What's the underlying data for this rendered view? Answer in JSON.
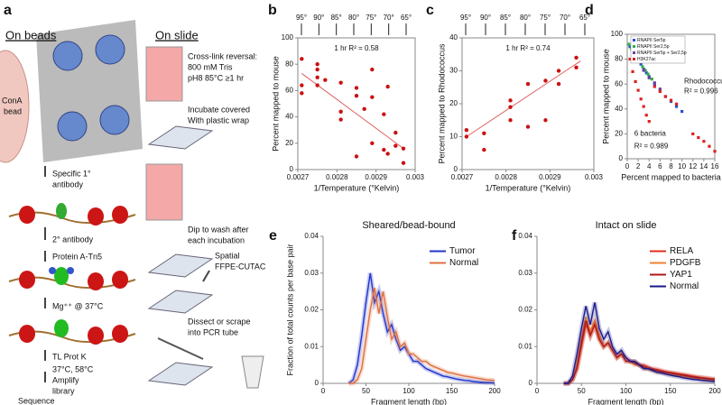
{
  "diagram": {
    "panel": "a",
    "on_beads": "On beads",
    "on_slide": "On slide",
    "bead": [
      "ConA",
      "bead"
    ],
    "bead_steps": [
      [
        "Specific 1°",
        "antibody"
      ],
      [
        "2° antibody"
      ],
      [
        "Protein A-Tn5"
      ],
      [
        "Mg⁺⁺ @ 37°C"
      ],
      [
        "TL Prot K"
      ],
      [
        "37°C, 58°C"
      ],
      [
        "Amplify",
        "library"
      ],
      [
        "Sequence"
      ]
    ],
    "slide_steps": [
      [
        "Cross-link reversal:",
        "800 mM Tris",
        "pH8 85°C ≥1 hr"
      ],
      [
        "Incubate covered",
        "With plastic wrap"
      ],
      [
        "Dip to wash after",
        "each incubation"
      ],
      [
        "Spatial",
        "FFPE-CUTAC"
      ],
      [
        "Dissect or scrape",
        "into PCR tube"
      ]
    ]
  },
  "chart_data": [
    {
      "type": "scatter",
      "panel": "b",
      "frame": true,
      "color": "#cc1111",
      "xlabel": "1/Temperature (°Kelvin)",
      "ylabel": "Percent mapped to mouse",
      "top_labels": [
        "95°",
        "90°",
        "85°",
        "80°",
        "75°",
        "70°",
        "65°"
      ],
      "annotations": [
        "1 hr R² = 0.58"
      ],
      "xlim": [
        0.0027,
        0.003
      ],
      "xticks": [
        0.0027,
        0.0028,
        0.0029,
        0.003
      ],
      "ylim": [
        0,
        100
      ],
      "yticks": [
        0,
        20,
        40,
        60,
        80,
        100
      ],
      "x": [
        0.00271,
        0.00271,
        0.00271,
        0.00275,
        0.00275,
        0.00275,
        0.00275,
        0.00277,
        0.00281,
        0.00281,
        0.00281,
        0.00285,
        0.00285,
        0.00285,
        0.00287,
        0.00289,
        0.00289,
        0.00289,
        0.00292,
        0.00292,
        0.00293,
        0.00295,
        0.00295,
        0.00297,
        0.00297,
        0.00293
      ],
      "values": [
        84,
        64,
        58,
        80,
        76,
        70,
        64,
        68,
        44,
        38,
        66,
        62,
        56,
        10,
        46,
        76,
        55,
        20,
        42,
        15,
        63,
        28,
        18,
        16,
        5,
        12
      ],
      "trendline": {
        "color": "#e06060",
        "x": [
          0.00271,
          0.00297
        ],
        "values": [
          73,
          16
        ]
      }
    },
    {
      "type": "scatter",
      "panel": "c",
      "frame": true,
      "color": "#cc1111",
      "xlabel": "1/Temperature (°Kelvin)",
      "ylabel": "Percent mapped to Rhodococcus",
      "top_labels": [
        "95°",
        "90°",
        "85°",
        "80°",
        "75°",
        "70°",
        "65°"
      ],
      "annotations": [
        "1 hr R² = 0.74"
      ],
      "xlim": [
        0.0027,
        0.003
      ],
      "xticks": [
        0.0027,
        0.0028,
        0.0029,
        0.003
      ],
      "ylim": [
        0,
        40
      ],
      "yticks": [
        0,
        10,
        20,
        30,
        40
      ],
      "x": [
        0.00271,
        0.00271,
        0.00275,
        0.00275,
        0.00281,
        0.00281,
        0.00281,
        0.00285,
        0.00285,
        0.00289,
        0.00289,
        0.00292,
        0.00292,
        0.00296,
        0.00296
      ],
      "values": [
        12,
        10,
        11,
        6,
        21,
        19,
        15,
        26,
        13,
        15,
        27,
        30,
        26,
        34,
        31
      ],
      "trendline": {
        "color": "#e06060",
        "x": [
          0.00271,
          0.00297
        ],
        "values": [
          10,
          33
        ]
      }
    },
    {
      "type": "scatter",
      "panel": "d",
      "frame": true,
      "legend": "upper left",
      "xlabel": "Percent mapped to bacteria",
      "ylabel": "Percent mapped to mouse",
      "annotations": [
        "Rhodococcus",
        "R² = 0.996",
        "6 bacteria",
        "R² = 0.989"
      ],
      "xlim": [
        0,
        16
      ],
      "xticks": [
        0,
        2,
        4,
        6,
        8,
        10,
        12,
        14,
        16
      ],
      "ylim": [
        0,
        100
      ],
      "yticks": [
        0,
        20,
        40,
        60,
        80,
        100
      ],
      "series": [
        {
          "name": "RNAPII Ser5p",
          "color": "#2a4fd0",
          "x": [
            0.5,
            1,
            1.5,
            2,
            2.5,
            3,
            3.5,
            4,
            5,
            6,
            7,
            8,
            9,
            10
          ],
          "values": [
            90,
            86,
            82,
            79,
            76,
            72,
            69,
            66,
            60,
            55,
            50,
            46,
            42,
            38
          ]
        },
        {
          "name": "RNAPII Ser2,5p",
          "color": "#30b040",
          "x": [
            0.3,
            0.8,
            1.3,
            1.8,
            2.3,
            2.8,
            3.3,
            3.8,
            4.5
          ],
          "values": [
            92,
            88,
            84,
            81,
            78,
            74,
            71,
            68,
            64
          ]
        },
        {
          "name": "RNAPII Ser5p + Ser2,5p",
          "color": "#7040a0",
          "x": [
            1,
            2,
            3,
            4,
            5,
            6
          ],
          "values": [
            85,
            78,
            71,
            65,
            61,
            56
          ]
        },
        {
          "name": "H3K27ac",
          "color": "#e02020",
          "x": [
            0.5,
            1,
            1.5,
            2,
            2.5,
            3,
            3.5,
            4,
            5,
            6,
            7,
            8,
            9,
            12,
            13,
            14,
            15,
            16
          ],
          "values": [
            80,
            70,
            62,
            55,
            48,
            42,
            35,
            30,
            58,
            54,
            50,
            47,
            44,
            20,
            17,
            14,
            10,
            6
          ]
        }
      ]
    },
    {
      "type": "line",
      "panel": "e",
      "title": "Sheared/bead-bound",
      "legend": "upper right",
      "xlabel": "Fragment length (bp)",
      "ylabel": "Fraction of total counts per base pair",
      "xlim": [
        0,
        200
      ],
      "xticks": [
        0,
        50,
        100,
        150,
        200
      ],
      "ylim": [
        0,
        0.04
      ],
      "yticks": [
        0,
        0.01,
        0.02,
        0.03,
        0.04
      ],
      "x": [
        30,
        35,
        40,
        45,
        50,
        55,
        60,
        65,
        70,
        75,
        80,
        85,
        90,
        95,
        100,
        105,
        110,
        115,
        120,
        125,
        130,
        135,
        140,
        145,
        150,
        155,
        160,
        165,
        170,
        175,
        180,
        185,
        190,
        195,
        200
      ],
      "series": [
        {
          "name": "Tumor",
          "color": "#2233cc",
          "values": [
            0,
            0.001,
            0.005,
            0.013,
            0.022,
            0.03,
            0.022,
            0.025,
            0.019,
            0.014,
            0.016,
            0.012,
            0.009,
            0.01,
            0.008,
            0.006,
            0.006,
            0.005,
            0.004,
            0.0035,
            0.003,
            0.0025,
            0.002,
            0.0018,
            0.0015,
            0.0012,
            0.001,
            0.0008,
            0.0007,
            0.0005,
            0.0004,
            0.0003,
            0.0002,
            0.0002,
            0.0001
          ]
        },
        {
          "name": "Normal",
          "color": "#e07040",
          "values": [
            0,
            0,
            0.001,
            0.004,
            0.012,
            0.02,
            0.026,
            0.019,
            0.025,
            0.018,
            0.012,
            0.014,
            0.01,
            0.011,
            0.008,
            0.008,
            0.007,
            0.006,
            0.006,
            0.005,
            0.0045,
            0.004,
            0.0035,
            0.003,
            0.0028,
            0.0025,
            0.0022,
            0.002,
            0.0018,
            0.0016,
            0.0014,
            0.0012,
            0.001,
            0.0009,
            0.0008
          ]
        }
      ]
    },
    {
      "type": "line",
      "panel": "f",
      "title": "Intact on slide",
      "legend": "upper right",
      "xlabel": "Fragment length (bp)",
      "xlim": [
        0,
        200
      ],
      "xticks": [
        0,
        50,
        100,
        150,
        200
      ],
      "ylim": [
        0,
        0.04
      ],
      "yticks": [
        0,
        0.01,
        0.02,
        0.03,
        0.04
      ],
      "x": [
        30,
        35,
        40,
        45,
        50,
        55,
        60,
        65,
        70,
        75,
        80,
        85,
        90,
        95,
        100,
        105,
        110,
        115,
        120,
        125,
        130,
        135,
        140,
        145,
        150,
        155,
        160,
        165,
        170,
        175,
        180,
        185,
        190,
        195,
        200
      ],
      "series": [
        {
          "name": "RELA",
          "color": "#e0301e",
          "values": [
            0,
            0,
            0.001,
            0.004,
            0.01,
            0.016,
            0.013,
            0.016,
            0.012,
            0.01,
            0.011,
            0.009,
            0.007,
            0.008,
            0.007,
            0.006,
            0.006,
            0.005,
            0.005,
            0.0045,
            0.004,
            0.0038,
            0.0035,
            0.0032,
            0.003,
            0.0028,
            0.0026,
            0.0024,
            0.0022,
            0.002,
            0.0018,
            0.0016,
            0.0015,
            0.0013,
            0.0012
          ]
        },
        {
          "name": "PDGFB",
          "color": "#f08030",
          "values": [
            0,
            0,
            0.001,
            0.005,
            0.012,
            0.018,
            0.014,
            0.017,
            0.013,
            0.01,
            0.011,
            0.009,
            0.007,
            0.008,
            0.006,
            0.006,
            0.005,
            0.005,
            0.004,
            0.004,
            0.0035,
            0.0032,
            0.003,
            0.0028,
            0.0025,
            0.0023,
            0.0021,
            0.0019,
            0.0017,
            0.0015,
            0.0013,
            0.0012,
            0.001,
            0.0009,
            0.0008
          ]
        },
        {
          "name": "YAP1",
          "color": "#b01818",
          "values": [
            0,
            0,
            0.001,
            0.004,
            0.011,
            0.017,
            0.013,
            0.016,
            0.012,
            0.01,
            0.011,
            0.009,
            0.007,
            0.008,
            0.006,
            0.006,
            0.0055,
            0.005,
            0.0045,
            0.004,
            0.0038,
            0.0035,
            0.0032,
            0.003,
            0.0028,
            0.0026,
            0.0024,
            0.0022,
            0.002,
            0.0018,
            0.0016,
            0.0015,
            0.0013,
            0.0012,
            0.001
          ]
        },
        {
          "name": "Normal",
          "color": "#1a1a8c",
          "values": [
            0,
            0,
            0.002,
            0.008,
            0.015,
            0.021,
            0.016,
            0.022,
            0.015,
            0.012,
            0.014,
            0.01,
            0.008,
            0.009,
            0.007,
            0.006,
            0.006,
            0.005,
            0.004,
            0.004,
            0.0035,
            0.003,
            0.0028,
            0.0025,
            0.0022,
            0.002,
            0.0018,
            0.0015,
            0.0013,
            0.0011,
            0.001,
            0.0008,
            0.0007,
            0.0006,
            0.0005
          ]
        }
      ]
    }
  ]
}
